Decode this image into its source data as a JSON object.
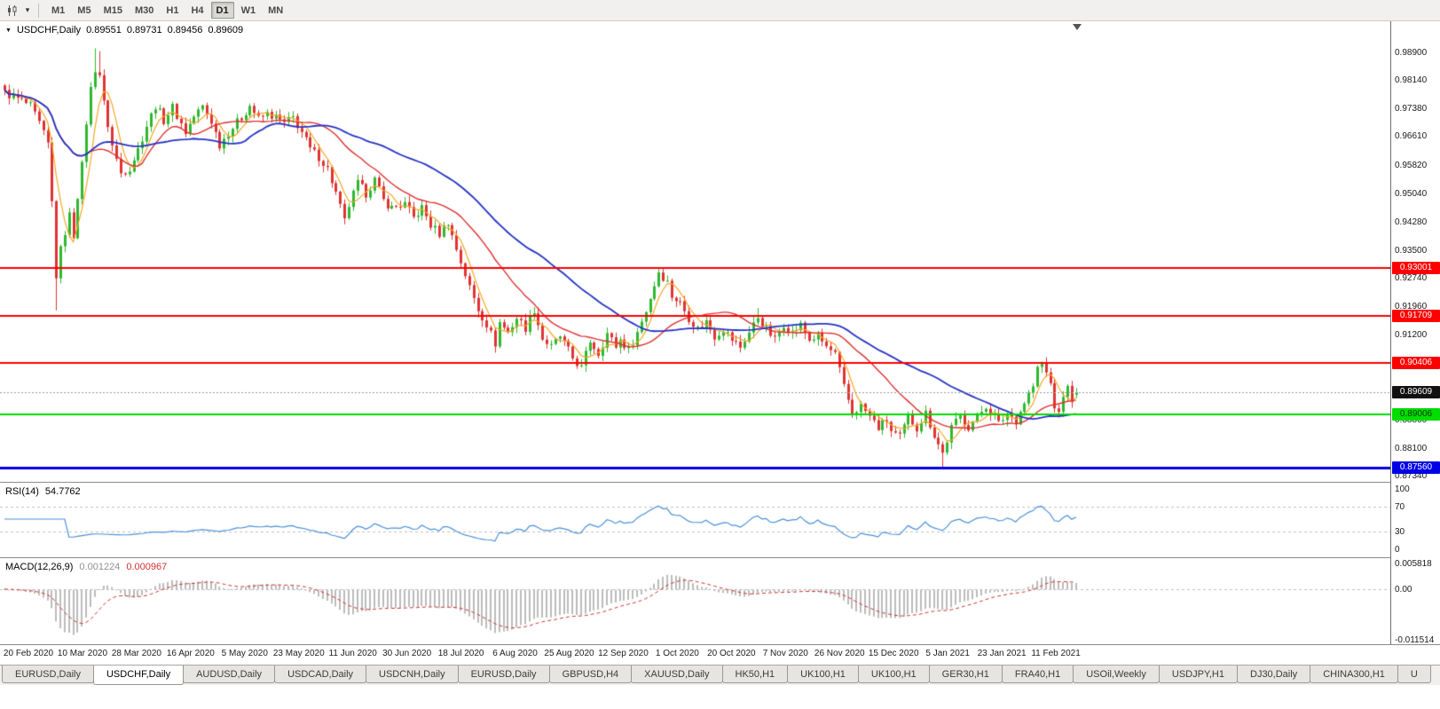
{
  "icons": {
    "chart_type": "candlestick-chart",
    "dropdown_caret": "▾",
    "title_triangle": "▼",
    "shift_marker": "chart-shift-marker"
  },
  "toolbar": {
    "timeframes": [
      "M1",
      "M5",
      "M15",
      "M30",
      "H1",
      "H4",
      "D1",
      "W1",
      "MN"
    ],
    "active_timeframe": "D1"
  },
  "colors": {
    "bull": "#2eb82e",
    "bear": "#e03232",
    "background": "#ffffff",
    "panel_border": "#8c8c8c",
    "toolbar_bg": "#f1f0ee",
    "rsi_line": "#4a90d9",
    "macd_histogram": "#bcbcbc",
    "macd_signal": "#cf3434",
    "current_price_line": "#9a9a9a",
    "grid_dash": "#c0c0c0"
  },
  "chart": {
    "title": "USDCHF,Daily",
    "open": "0.89551",
    "high": "0.89731",
    "low": "0.89456",
    "close": "0.89609",
    "price_scale_labels": [
      {
        "text": "0.98900",
        "value": 0.989
      },
      {
        "text": "0.98140",
        "value": 0.9814
      },
      {
        "text": "0.97380",
        "value": 0.9738
      },
      {
        "text": "0.96610",
        "value": 0.9661
      },
      {
        "text": "0.95820",
        "value": 0.9582
      },
      {
        "text": "0.95040",
        "value": 0.9504
      },
      {
        "text": "0.94280",
        "value": 0.9428
      },
      {
        "text": "0.93500",
        "value": 0.935
      },
      {
        "text": "0.92740",
        "value": 0.9274
      },
      {
        "text": "0.91960",
        "value": 0.9196
      },
      {
        "text": "0.91200",
        "value": 0.912
      },
      {
        "text": "0.88860",
        "value": 0.8886
      },
      {
        "text": "0.88100",
        "value": 0.881
      },
      {
        "text": "0.87340",
        "value": 0.8734
      }
    ],
    "hlines": [
      {
        "value": 0.93001,
        "text": "0.93001",
        "color": "#ff0000",
        "thickness": 2,
        "text_color": "#ffffff"
      },
      {
        "value": 0.91709,
        "text": "0.91709",
        "color": "#ff0000",
        "thickness": 2,
        "text_color": "#ffffff"
      },
      {
        "value": 0.90406,
        "text": "0.90406",
        "color": "#ff0000",
        "thickness": 2,
        "text_color": "#ffffff"
      },
      {
        "value": 0.89006,
        "text": "0.89006",
        "color": "#00dd00",
        "thickness": 2,
        "text_color": "#073807"
      },
      {
        "value": 0.8756,
        "text": "0.87560",
        "color": "#0000e6",
        "thickness": 3,
        "text_color": "#ffffff"
      }
    ],
    "current_price": {
      "value": 0.89609,
      "text": "0.89609",
      "tag_bg": "#111111",
      "text_color": "#ffffff"
    },
    "date_labels": [
      "20 Feb 2020",
      "10 Mar 2020",
      "28 Mar 2020",
      "16 Apr 2020",
      "5 May 2020",
      "23 May 2020",
      "11 Jun 2020",
      "30 Jun 2020",
      "18 Jul 2020",
      "6 Aug 2020",
      "25 Aug 2020",
      "12 Sep 2020",
      "1 Oct 2020",
      "20 Oct 2020",
      "7 Nov 2020",
      "26 Nov 2020",
      "15 Dec 2020",
      "5 Jan 2021",
      "23 Jan 2021",
      "11 Feb 2021"
    ]
  },
  "rsi": {
    "label": "RSI(14)",
    "value": "54.7762",
    "color": "#4a90d9",
    "levels": [
      {
        "text": "100",
        "value": 100
      },
      {
        "text": "70",
        "value": 70
      },
      {
        "text": "30",
        "value": 30
      },
      {
        "text": "0",
        "value": 0
      }
    ],
    "upper_level": 70,
    "lower_level": 30
  },
  "macd": {
    "label": "MACD(12,26,9)",
    "macd_value": "0.001224",
    "signal_value": "0.000967",
    "scale": [
      {
        "text": "0.005818",
        "value": 0.005818
      },
      {
        "text": "0.00",
        "value": 0
      },
      {
        "text": "-0.011514",
        "value": -0.011514
      }
    ]
  },
  "chart_data": {
    "type": "candlestick",
    "symbol": "USDCHF",
    "timeframe": "Daily",
    "bars": 250,
    "ylim": [
      0.8734,
      0.9901
    ],
    "x_labels": [
      "20 Feb 2020",
      "10 Mar 2020",
      "28 Mar 2020",
      "16 Apr 2020",
      "5 May 2020",
      "23 May 2020",
      "11 Jun 2020",
      "30 Jun 2020",
      "18 Jul 2020",
      "6 Aug 2020",
      "25 Aug 2020",
      "12 Sep 2020",
      "1 Oct 2020",
      "20 Oct 2020",
      "7 Nov 2020",
      "26 Nov 2020",
      "15 Dec 2020",
      "5 Jan 2021",
      "23 Jan 2021",
      "11 Feb 2021"
    ],
    "support_resistance_levels": [
      0.93001,
      0.91709,
      0.90406,
      0.89006,
      0.8756
    ],
    "last_bar": {
      "open": 0.89551,
      "high": 0.89731,
      "low": 0.89456,
      "close": 0.89609
    },
    "keypoints": [
      [
        0,
        0.978
      ],
      [
        2,
        0.9768
      ],
      [
        4,
        0.9758
      ],
      [
        6,
        0.9742
      ],
      [
        8,
        0.9695
      ],
      [
        10,
        0.9638
      ],
      [
        11,
        0.948
      ],
      [
        12,
        0.928
      ],
      [
        13,
        0.935
      ],
      [
        14,
        0.94
      ],
      [
        15,
        0.9445
      ],
      [
        16,
        0.939
      ],
      [
        17,
        0.95
      ],
      [
        18,
        0.958
      ],
      [
        19,
        0.97
      ],
      [
        20,
        0.979
      ],
      [
        21,
        0.9845
      ],
      [
        22,
        0.983
      ],
      [
        23,
        0.975
      ],
      [
        25,
        0.9635
      ],
      [
        27,
        0.956
      ],
      [
        29,
        0.9575
      ],
      [
        31,
        0.9625
      ],
      [
        33,
        0.969
      ],
      [
        35,
        0.9745
      ],
      [
        37,
        0.9705
      ],
      [
        39,
        0.974
      ],
      [
        42,
        0.9672
      ],
      [
        44,
        0.9715
      ],
      [
        46,
        0.9742
      ],
      [
        48,
        0.9702
      ],
      [
        50,
        0.9638
      ],
      [
        52,
        0.9672
      ],
      [
        55,
        0.9712
      ],
      [
        57,
        0.9745
      ],
      [
        59,
        0.9708
      ],
      [
        61,
        0.9722
      ],
      [
        63,
        0.9712
      ],
      [
        65,
        0.9695
      ],
      [
        67,
        0.9712
      ],
      [
        69,
        0.9672
      ],
      [
        71,
        0.9625
      ],
      [
        73,
        0.9605
      ],
      [
        75,
        0.9572
      ],
      [
        77,
        0.9505
      ],
      [
        79,
        0.9428
      ],
      [
        80,
        0.9472
      ],
      [
        82,
        0.9532
      ],
      [
        84,
        0.9505
      ],
      [
        86,
        0.9542
      ],
      [
        88,
        0.9485
      ],
      [
        90,
        0.9465
      ],
      [
        93,
        0.9475
      ],
      [
        95,
        0.9438
      ],
      [
        97,
        0.9465
      ],
      [
        99,
        0.9418
      ],
      [
        101,
        0.9395
      ],
      [
        103,
        0.9428
      ],
      [
        104,
        0.9388
      ],
      [
        106,
        0.9318
      ],
      [
        108,
        0.9248
      ],
      [
        110,
        0.9188
      ],
      [
        112,
        0.9148
      ],
      [
        114,
        0.9095
      ],
      [
        115,
        0.9152
      ],
      [
        117,
        0.9125
      ],
      [
        119,
        0.9165
      ],
      [
        121,
        0.9138
      ],
      [
        123,
        0.9188
      ],
      [
        125,
        0.9108
      ],
      [
        127,
        0.9085
      ],
      [
        129,
        0.9115
      ],
      [
        130,
        0.9095
      ],
      [
        132,
        0.9055
      ],
      [
        134,
        0.9028
      ],
      [
        136,
        0.9102
      ],
      [
        138,
        0.9068
      ],
      [
        140,
        0.9122
      ],
      [
        142,
        0.9088
      ],
      [
        143,
        0.9105
      ],
      [
        145,
        0.9078
      ],
      [
        147,
        0.9125
      ],
      [
        149,
        0.9185
      ],
      [
        151,
        0.9255
      ],
      [
        152,
        0.9292
      ],
      [
        154,
        0.9262
      ],
      [
        155,
        0.9225
      ],
      [
        157,
        0.9205
      ],
      [
        159,
        0.9165
      ],
      [
        161,
        0.9135
      ],
      [
        163,
        0.9155
      ],
      [
        165,
        0.9115
      ],
      [
        167,
        0.9135
      ],
      [
        169,
        0.9105
      ],
      [
        171,
        0.9085
      ],
      [
        173,
        0.9125
      ],
      [
        175,
        0.9168
      ],
      [
        177,
        0.9135
      ],
      [
        179,
        0.9105
      ],
      [
        181,
        0.9148
      ],
      [
        183,
        0.9125
      ],
      [
        185,
        0.9145
      ],
      [
        187,
        0.9105
      ],
      [
        189,
        0.9115
      ],
      [
        191,
        0.9085
      ],
      [
        193,
        0.9065
      ],
      [
        195,
        0.8975
      ],
      [
        197,
        0.8905
      ],
      [
        199,
        0.8925
      ],
      [
        201,
        0.8895
      ],
      [
        203,
        0.8865
      ],
      [
        205,
        0.8885
      ],
      [
        206,
        0.8855
      ],
      [
        208,
        0.8838
      ],
      [
        210,
        0.8895
      ],
      [
        212,
        0.8865
      ],
      [
        214,
        0.8905
      ],
      [
        216,
        0.8845
      ],
      [
        218,
        0.8795
      ],
      [
        220,
        0.8865
      ],
      [
        222,
        0.8895
      ],
      [
        224,
        0.8868
      ],
      [
        226,
        0.8895
      ],
      [
        228,
        0.8925
      ],
      [
        230,
        0.8895
      ],
      [
        231,
        0.8875
      ],
      [
        233,
        0.8905
      ],
      [
        235,
        0.8885
      ],
      [
        237,
        0.8935
      ],
      [
        239,
        0.8978
      ],
      [
        240,
        0.9025
      ],
      [
        241,
        0.9042
      ],
      [
        243,
        0.8985
      ],
      [
        244,
        0.8925
      ],
      [
        245,
        0.8898
      ],
      [
        246,
        0.8955
      ],
      [
        247,
        0.8972
      ],
      [
        248,
        0.8945
      ],
      [
        249,
        0.89609
      ]
    ],
    "special_bars": [
      {
        "i": 12,
        "l": 0.9185
      },
      {
        "i": 21,
        "h": 0.9901
      },
      {
        "i": 22,
        "h": 0.9893
      },
      {
        "i": 152,
        "h": 0.9301
      },
      {
        "i": 175,
        "h": 0.9192
      },
      {
        "i": 218,
        "l": 0.8757
      },
      {
        "i": 241,
        "h": 0.9046
      },
      {
        "i": 249,
        "o": 0.89551,
        "h": 0.89731,
        "l": 0.89456,
        "c": 0.89609
      }
    ],
    "moving_averages": [
      {
        "period": 5,
        "color": "#f5a623",
        "width": 1.2
      },
      {
        "period": 21,
        "color": "#e02f2f",
        "width": 1.4
      },
      {
        "period": 45,
        "color": "#2433c4",
        "width": 1.8
      }
    ],
    "indicators": [
      {
        "name": "RSI",
        "params": "14",
        "current": 54.7762
      },
      {
        "name": "MACD",
        "params": "12,26,9",
        "current_macd": 0.001224,
        "current_signal": 0.000967
      }
    ]
  },
  "tabs": {
    "items": [
      "EURUSD,Daily",
      "USDCHF,Daily",
      "AUDUSD,Daily",
      "USDCAD,Daily",
      "USDCNH,Daily",
      "EURUSD,Daily",
      "GBPUSD,H4",
      "XAUUSD,Daily",
      "HK50,H1",
      "UK100,H1",
      "UK100,H1",
      "GER30,H1",
      "FRA40,H1",
      "USOil,Weekly",
      "USDJPY,H1",
      "DJ30,Daily",
      "CHINA300,H1",
      "U"
    ],
    "active_index": 1
  }
}
